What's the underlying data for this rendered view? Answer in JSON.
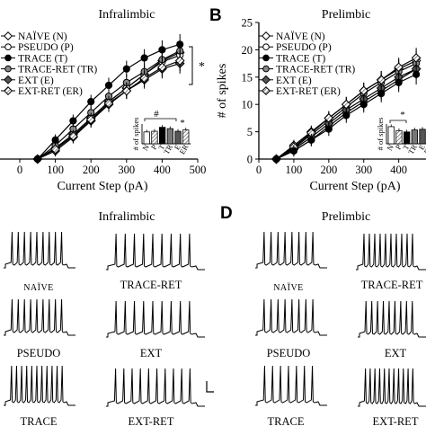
{
  "panel_letters": {
    "B": "B",
    "D": "D"
  },
  "top_left": {
    "title": "Infralimbic"
  },
  "top_right": {
    "title": "Prelimbic"
  },
  "bottom_left": {
    "title": "Infralimbic"
  },
  "bottom_right": {
    "title": "Prelimbic"
  },
  "significance_marks": {
    "left_star": "*",
    "inset_left_hash": "#",
    "inset_left_star": "*",
    "inset_right_star": "*"
  },
  "trace_labels": {
    "naive": "NAÏVE",
    "trace_ret": "TRACE-RET",
    "pseudo": "PSEUDO",
    "ext": "EXT",
    "trace": "TRACE",
    "ext_ret": "EXT-RET"
  },
  "chart_data": [
    {
      "type": "line",
      "title": "Infralimbic",
      "xlabel": "Current Step (pA)",
      "ylabel": "",
      "xlim": [
        0,
        500
      ],
      "ylim": [
        0,
        25
      ],
      "xticks": [
        "0",
        "100",
        "200",
        "300",
        "400",
        "500"
      ],
      "yticks": [],
      "legend_placement": "top-left",
      "x": [
        50,
        100,
        150,
        200,
        250,
        300,
        350,
        400,
        450
      ],
      "series": [
        {
          "name": "NAÏVE (N)",
          "marker": "diamond-open",
          "values": [
            0,
            2.0,
            4.5,
            7.5,
            10.5,
            13.0,
            15.5,
            18.0,
            19.5
          ]
        },
        {
          "name": "PSEUDO (P)",
          "marker": "circle-open",
          "values": [
            0,
            2.0,
            4.5,
            7.5,
            10.5,
            13.0,
            15.5,
            17.8,
            19.0
          ]
        },
        {
          "name": "TRACE (T)",
          "marker": "circle-filled",
          "values": [
            0,
            3.5,
            7.0,
            10.5,
            13.5,
            16.5,
            18.5,
            20.0,
            21.0
          ]
        },
        {
          "name": "TRACE-RET (TR)",
          "marker": "circle-grey",
          "values": [
            0,
            2.5,
            5.5,
            8.5,
            11.5,
            14.0,
            16.0,
            18.2,
            19.8
          ]
        },
        {
          "name": "EXT (E)",
          "marker": "diamond-filled",
          "values": [
            0,
            1.5,
            4.0,
            7.0,
            10.0,
            12.5,
            14.5,
            16.5,
            17.5
          ]
        },
        {
          "name": "EXT-RET (ER)",
          "marker": "diamond-hatched",
          "values": [
            0,
            1.8,
            4.2,
            7.2,
            10.2,
            12.5,
            14.8,
            16.8,
            18.0
          ]
        }
      ],
      "inset": {
        "ylabel": "# of spikes",
        "categories": [
          "N",
          "P",
          "T",
          "TR",
          "E",
          "ER"
        ],
        "values": [
          9,
          9.5,
          12.5,
          11.5,
          9.5,
          10.5
        ]
      }
    },
    {
      "type": "line",
      "title": "Prelimbic",
      "xlabel": "Current Step (pA)",
      "ylabel": "# of spikes",
      "xlim": [
        0,
        460
      ],
      "ylim": [
        0,
        25
      ],
      "xticks": [
        "0",
        "100",
        "200",
        "300",
        "400"
      ],
      "yticks": [
        "0",
        "5",
        "10",
        "15",
        "20",
        "25"
      ],
      "legend_placement": "top-left",
      "x": [
        50,
        100,
        150,
        200,
        250,
        300,
        350,
        400,
        450
      ],
      "series": [
        {
          "name": "NAÏVE (N)",
          "marker": "diamond-open",
          "values": [
            0,
            2.5,
            5.0,
            7.5,
            10.0,
            12.5,
            14.5,
            16.5,
            18.0
          ]
        },
        {
          "name": "PSEUDO (P)",
          "marker": "circle-open",
          "values": [
            0,
            1.5,
            3.5,
            6.0,
            8.5,
            10.5,
            12.5,
            14.5,
            16.5
          ]
        },
        {
          "name": "TRACE (T)",
          "marker": "circle-filled",
          "values": [
            0,
            1.5,
            3.5,
            5.5,
            8.0,
            10.0,
            12.0,
            14.0,
            15.5
          ]
        },
        {
          "name": "TRACE-RET (TR)",
          "marker": "circle-grey",
          "values": [
            0,
            2.0,
            4.5,
            7.0,
            9.5,
            12.0,
            14.0,
            16.0,
            17.5
          ]
        },
        {
          "name": "EXT (E)",
          "marker": "diamond-filled",
          "values": [
            0,
            1.8,
            4.0,
            6.5,
            9.0,
            11.0,
            13.0,
            15.0,
            16.5
          ]
        },
        {
          "name": "EXT-RET (ER)",
          "marker": "diamond-hatched",
          "values": [
            0,
            2.2,
            4.8,
            7.5,
            10.0,
            12.5,
            14.5,
            16.8,
            18.5
          ]
        }
      ],
      "inset": {
        "ylabel": "# of spikes",
        "categories": [
          "N",
          "P",
          "T",
          "TR",
          "E",
          "ER"
        ],
        "values": [
          13,
          10,
          9,
          10.5,
          11,
          12
        ]
      }
    }
  ]
}
